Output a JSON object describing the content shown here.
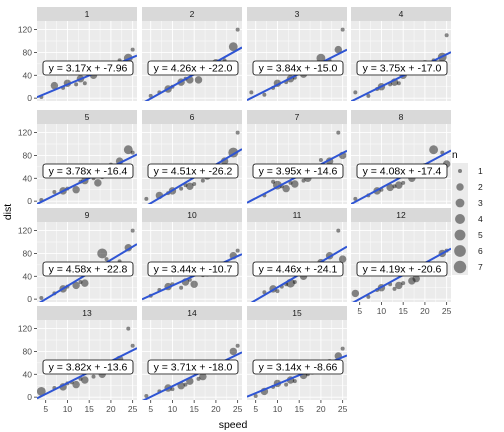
{
  "chart_data": {
    "type": "scatter",
    "xlabel": "speed",
    "ylabel": "dist",
    "xlim": [
      3,
      26
    ],
    "ylim": [
      -5,
      135
    ],
    "xticks": [
      5,
      10,
      15,
      20,
      25
    ],
    "yticks": [
      0,
      40,
      80,
      120
    ],
    "legend": {
      "title": "n",
      "levels": [
        1,
        2,
        3,
        4,
        5,
        6,
        7
      ],
      "placement": "right"
    },
    "colors": {
      "points": "#000000",
      "fit_line": "#2f55d4",
      "panel": "#ebebeb",
      "strip": "#d9d9d9"
    },
    "panels": [
      {
        "label": "1",
        "equation": "y = 3.17x + -7.96",
        "slope": 3.17,
        "intercept": -7.96,
        "points": [
          [
            4,
            2,
            1
          ],
          [
            7,
            22,
            2
          ],
          [
            9,
            18,
            1
          ],
          [
            10,
            26,
            2
          ],
          [
            12,
            24,
            1
          ],
          [
            13,
            34,
            2
          ],
          [
            14,
            26,
            1
          ],
          [
            16,
            40,
            2
          ],
          [
            17,
            46,
            1
          ],
          [
            18,
            56,
            3
          ],
          [
            19,
            46,
            1
          ],
          [
            20,
            48,
            2
          ],
          [
            22,
            66,
            1
          ],
          [
            24,
            70,
            3
          ],
          [
            25,
            85,
            1
          ]
        ]
      },
      {
        "label": "2",
        "equation": "y = 4.26x + -22.0",
        "slope": 4.26,
        "intercept": -22.0,
        "points": [
          [
            5,
            4,
            1
          ],
          [
            7,
            10,
            1
          ],
          [
            9,
            16,
            2
          ],
          [
            10,
            20,
            1
          ],
          [
            12,
            28,
            2
          ],
          [
            13,
            34,
            1
          ],
          [
            14,
            32,
            2
          ],
          [
            15,
            54,
            1
          ],
          [
            16,
            32,
            2
          ],
          [
            18,
            56,
            3
          ],
          [
            19,
            60,
            1
          ],
          [
            20,
            62,
            2
          ],
          [
            22,
            66,
            1
          ],
          [
            24,
            90,
            3
          ],
          [
            25,
            120,
            1
          ]
        ]
      },
      {
        "label": "3",
        "equation": "y = 3.84x + -15.0",
        "slope": 3.84,
        "intercept": -15.0,
        "points": [
          [
            4,
            10,
            1
          ],
          [
            7,
            6,
            1
          ],
          [
            9,
            18,
            1
          ],
          [
            10,
            26,
            2
          ],
          [
            12,
            28,
            1
          ],
          [
            13,
            34,
            2
          ],
          [
            14,
            36,
            1
          ],
          [
            16,
            42,
            2
          ],
          [
            17,
            48,
            1
          ],
          [
            18,
            56,
            2
          ],
          [
            19,
            62,
            1
          ],
          [
            20,
            70,
            3
          ],
          [
            22,
            66,
            1
          ],
          [
            24,
            85,
            2
          ],
          [
            25,
            120,
            1
          ]
        ]
      },
      {
        "label": "4",
        "equation": "y = 3.75x + -17.0",
        "slope": 3.75,
        "intercept": -17.0,
        "points": [
          [
            4,
            10,
            1
          ],
          [
            7,
            4,
            1
          ],
          [
            9,
            16,
            1
          ],
          [
            10,
            20,
            2
          ],
          [
            12,
            24,
            1
          ],
          [
            13,
            28,
            2
          ],
          [
            14,
            26,
            1
          ],
          [
            15,
            40,
            2
          ],
          [
            17,
            44,
            1
          ],
          [
            18,
            50,
            2
          ],
          [
            19,
            56,
            1
          ],
          [
            20,
            60,
            2
          ],
          [
            22,
            66,
            1
          ],
          [
            24,
            72,
            3
          ],
          [
            25,
            110,
            1
          ]
        ]
      },
      {
        "label": "5",
        "equation": "y = 3.78x + -16.4",
        "slope": 3.78,
        "intercept": -16.4,
        "points": [
          [
            4,
            2,
            1
          ],
          [
            7,
            16,
            1
          ],
          [
            9,
            18,
            2
          ],
          [
            10,
            22,
            1
          ],
          [
            12,
            20,
            2
          ],
          [
            13,
            34,
            1
          ],
          [
            14,
            36,
            2
          ],
          [
            16,
            40,
            1
          ],
          [
            17,
            32,
            2
          ],
          [
            18,
            42,
            1
          ],
          [
            19,
            52,
            2
          ],
          [
            20,
            64,
            1
          ],
          [
            22,
            70,
            2
          ],
          [
            24,
            90,
            3
          ],
          [
            25,
            85,
            1
          ]
        ]
      },
      {
        "label": "6",
        "equation": "y = 4.51x + -26.2",
        "slope": 4.51,
        "intercept": -26.2,
        "points": [
          [
            4,
            4,
            1
          ],
          [
            7,
            10,
            2
          ],
          [
            9,
            14,
            1
          ],
          [
            10,
            18,
            2
          ],
          [
            12,
            22,
            1
          ],
          [
            13,
            28,
            1
          ],
          [
            14,
            26,
            2
          ],
          [
            15,
            30,
            1
          ],
          [
            17,
            36,
            1
          ],
          [
            18,
            44,
            2
          ],
          [
            19,
            56,
            1
          ],
          [
            20,
            58,
            2
          ],
          [
            22,
            70,
            2
          ],
          [
            24,
            85,
            4
          ],
          [
            25,
            120,
            1
          ]
        ]
      },
      {
        "label": "7",
        "equation": "y = 3.95x + -14.6",
        "slope": 3.95,
        "intercept": -14.6,
        "points": [
          [
            7,
            10,
            1
          ],
          [
            9,
            34,
            1
          ],
          [
            10,
            28,
            3
          ],
          [
            11,
            26,
            1
          ],
          [
            12,
            22,
            2
          ],
          [
            13,
            32,
            1
          ],
          [
            14,
            30,
            2
          ],
          [
            16,
            36,
            1
          ],
          [
            17,
            40,
            2
          ],
          [
            18,
            56,
            1
          ],
          [
            19,
            48,
            2
          ],
          [
            20,
            72,
            1
          ],
          [
            22,
            70,
            2
          ],
          [
            24,
            120,
            1
          ],
          [
            25,
            80,
            2
          ]
        ]
      },
      {
        "label": "8",
        "equation": "y = 4.08x + -17.4",
        "slope": 4.08,
        "intercept": -17.4,
        "points": [
          [
            4,
            4,
            1
          ],
          [
            7,
            10,
            1
          ],
          [
            9,
            18,
            2
          ],
          [
            10,
            20,
            1
          ],
          [
            12,
            24,
            2
          ],
          [
            13,
            26,
            1
          ],
          [
            14,
            28,
            2
          ],
          [
            15,
            32,
            1
          ],
          [
            17,
            40,
            2
          ],
          [
            18,
            46,
            1
          ],
          [
            19,
            54,
            2
          ],
          [
            20,
            60,
            2
          ],
          [
            22,
            90,
            3
          ],
          [
            24,
            85,
            1
          ],
          [
            25,
            65,
            2
          ]
        ]
      },
      {
        "label": "9",
        "equation": "y = 4.58x + -22.8",
        "slope": 4.58,
        "intercept": -22.8,
        "points": [
          [
            4,
            2,
            1
          ],
          [
            7,
            10,
            1
          ],
          [
            9,
            18,
            2
          ],
          [
            10,
            22,
            1
          ],
          [
            12,
            24,
            2
          ],
          [
            13,
            30,
            1
          ],
          [
            14,
            28,
            2
          ],
          [
            15,
            48,
            1
          ],
          [
            17,
            54,
            1
          ],
          [
            18,
            80,
            4
          ],
          [
            19,
            70,
            1
          ],
          [
            20,
            56,
            2
          ],
          [
            22,
            66,
            1
          ],
          [
            24,
            90,
            2
          ],
          [
            25,
            120,
            1
          ]
        ]
      },
      {
        "label": "10",
        "equation": "y = 3.44x + -10.7",
        "slope": 3.44,
        "intercept": -10.7,
        "points": [
          [
            5,
            6,
            1
          ],
          [
            7,
            16,
            1
          ],
          [
            9,
            22,
            2
          ],
          [
            10,
            26,
            1
          ],
          [
            12,
            20,
            1
          ],
          [
            13,
            30,
            2
          ],
          [
            14,
            34,
            1
          ],
          [
            15,
            26,
            2
          ],
          [
            17,
            42,
            1
          ],
          [
            18,
            46,
            2
          ],
          [
            19,
            56,
            1
          ],
          [
            20,
            48,
            2
          ],
          [
            22,
            60,
            1
          ],
          [
            24,
            76,
            2
          ],
          [
            25,
            85,
            1
          ]
        ]
      },
      {
        "label": "11",
        "equation": "y = 4.46x + -24.1",
        "slope": 4.46,
        "intercept": -24.1,
        "points": [
          [
            7,
            12,
            1
          ],
          [
            9,
            18,
            2
          ],
          [
            10,
            14,
            1
          ],
          [
            11,
            22,
            1
          ],
          [
            12,
            26,
            1
          ],
          [
            13,
            28,
            3
          ],
          [
            14,
            30,
            1
          ],
          [
            16,
            40,
            2
          ],
          [
            17,
            46,
            1
          ],
          [
            18,
            56,
            2
          ],
          [
            19,
            52,
            1
          ],
          [
            20,
            64,
            2
          ],
          [
            22,
            76,
            2
          ],
          [
            24,
            120,
            1
          ],
          [
            25,
            70,
            2
          ]
        ]
      },
      {
        "label": "12",
        "equation": "y = 4.19x + -20.6",
        "slope": 4.19,
        "intercept": -20.6,
        "points": [
          [
            4,
            10,
            2
          ],
          [
            7,
            4,
            1
          ],
          [
            9,
            16,
            1
          ],
          [
            10,
            20,
            2
          ],
          [
            12,
            26,
            1
          ],
          [
            13,
            18,
            1
          ],
          [
            14,
            24,
            2
          ],
          [
            15,
            28,
            1
          ],
          [
            17,
            32,
            2
          ],
          [
            18,
            36,
            2
          ],
          [
            19,
            46,
            1
          ],
          [
            20,
            52,
            2
          ],
          [
            22,
            60,
            1
          ],
          [
            24,
            80,
            2
          ],
          [
            25,
            85,
            1
          ]
        ]
      },
      {
        "label": "13",
        "equation": "y = 3.82x + -13.6",
        "slope": 3.82,
        "intercept": -13.6,
        "points": [
          [
            4,
            10,
            3
          ],
          [
            7,
            16,
            1
          ],
          [
            9,
            18,
            2
          ],
          [
            10,
            24,
            1
          ],
          [
            11,
            26,
            1
          ],
          [
            12,
            22,
            2
          ],
          [
            13,
            32,
            1
          ],
          [
            14,
            30,
            2
          ],
          [
            16,
            36,
            1
          ],
          [
            18,
            40,
            2
          ],
          [
            19,
            56,
            2
          ],
          [
            20,
            52,
            4
          ],
          [
            22,
            66,
            2
          ],
          [
            24,
            120,
            1
          ],
          [
            25,
            90,
            1
          ]
        ]
      },
      {
        "label": "14",
        "equation": "y = 3.71x + -18.0",
        "slope": 3.71,
        "intercept": -18.0,
        "points": [
          [
            4,
            2,
            1
          ],
          [
            7,
            10,
            1
          ],
          [
            9,
            16,
            2
          ],
          [
            10,
            14,
            1
          ],
          [
            12,
            20,
            2
          ],
          [
            13,
            22,
            1
          ],
          [
            14,
            28,
            2
          ],
          [
            16,
            32,
            1
          ],
          [
            17,
            36,
            2
          ],
          [
            18,
            46,
            1
          ],
          [
            19,
            54,
            2
          ],
          [
            20,
            48,
            1
          ],
          [
            22,
            60,
            1
          ],
          [
            24,
            80,
            2
          ],
          [
            25,
            90,
            1
          ]
        ]
      },
      {
        "label": "15",
        "equation": "y = 3.14x + -8.66",
        "slope": 3.14,
        "intercept": -8.66,
        "points": [
          [
            5,
            2,
            1
          ],
          [
            7,
            10,
            2
          ],
          [
            9,
            18,
            1
          ],
          [
            10,
            24,
            2
          ],
          [
            12,
            22,
            1
          ],
          [
            13,
            30,
            2
          ],
          [
            14,
            28,
            1
          ],
          [
            16,
            38,
            2
          ],
          [
            17,
            40,
            1
          ],
          [
            18,
            46,
            2
          ],
          [
            19,
            56,
            1
          ],
          [
            20,
            54,
            2
          ],
          [
            22,
            60,
            2
          ],
          [
            24,
            72,
            2
          ],
          [
            25,
            85,
            1
          ]
        ]
      }
    ]
  }
}
